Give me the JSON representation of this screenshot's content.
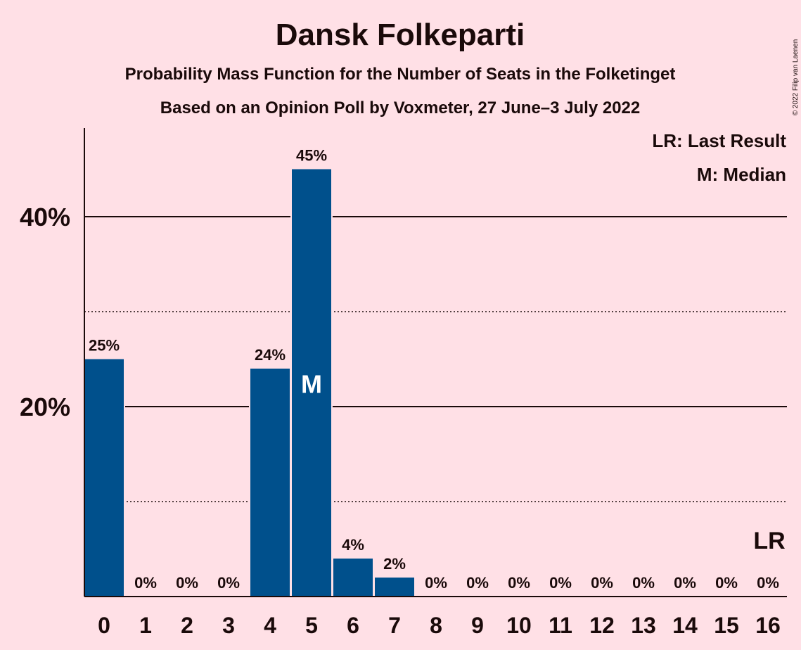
{
  "chart_data": {
    "type": "bar",
    "title": "Dansk Folkeparti",
    "subtitle_1": "Probability Mass Function for the Number of Seats in the Folketinget",
    "subtitle_2": "Based on an Opinion Poll by Voxmeter, 27 June–3 July 2022",
    "categories": [
      "0",
      "1",
      "2",
      "3",
      "4",
      "5",
      "6",
      "7",
      "8",
      "9",
      "10",
      "11",
      "12",
      "13",
      "14",
      "15",
      "16"
    ],
    "values": [
      25,
      0,
      0,
      0,
      24,
      45,
      4,
      2,
      0,
      0,
      0,
      0,
      0,
      0,
      0,
      0,
      0
    ],
    "value_labels": [
      "25%",
      "0%",
      "0%",
      "0%",
      "24%",
      "45%",
      "4%",
      "2%",
      "0%",
      "0%",
      "0%",
      "0%",
      "0%",
      "0%",
      "0%",
      "0%",
      "0%"
    ],
    "ylim": [
      0,
      49
    ],
    "y_major_ticks": [
      20,
      40
    ],
    "y_major_tick_labels": [
      "20%",
      "40%"
    ],
    "y_minor_gridlines": [
      10,
      30
    ],
    "median_seat": 5,
    "median_marker": "M",
    "last_result_seat": 16,
    "last_result_marker": "LR",
    "legend": [
      "LR: Last Result",
      "M: Median"
    ],
    "legend_position": "top-right",
    "bar_color": "#00508c",
    "background_color": "#ffe0e6",
    "copyright": "© 2022 Filip van Laenen"
  }
}
